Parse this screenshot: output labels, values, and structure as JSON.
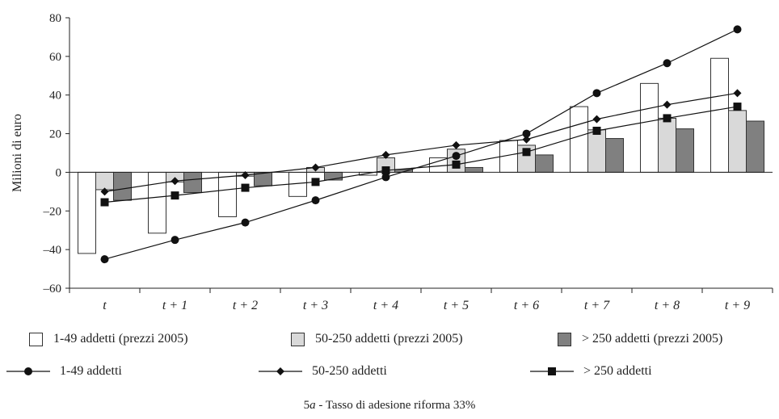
{
  "chart_data": {
    "type": "bar",
    "categories": [
      "t",
      "t + 1",
      "t + 2",
      "t + 3",
      "t + 4",
      "t + 5",
      "t + 6",
      "t + 7",
      "t + 8",
      "t + 9"
    ],
    "ylabel": "Milioni di euro",
    "xlabel": "",
    "ylim": [
      -60,
      80
    ],
    "yticks": [
      -60,
      -40,
      -20,
      0,
      20,
      40,
      60,
      80
    ],
    "bar_series": [
      {
        "name": "1-49 addetti (prezzi 2005)",
        "color": "#ffffff",
        "values": [
          -42,
          -31.5,
          -23,
          -12.5,
          -1.5,
          7.5,
          16.5,
          34,
          46,
          59
        ]
      },
      {
        "name": "50-250 addetti (prezzi 2005)",
        "color": "#d9d9d9",
        "values": [
          -9,
          -5,
          -2,
          2.5,
          7.5,
          12,
          14,
          22,
          28,
          32
        ]
      },
      {
        "name": "> 250 addetti (prezzi 2005)",
        "color": "#808080",
        "values": [
          -14.5,
          -10.5,
          -7,
          -4,
          1.5,
          2.5,
          9,
          17.5,
          22.5,
          26.5
        ]
      }
    ],
    "line_series": [
      {
        "name": "1-49 addetti",
        "marker": "circle",
        "values": [
          -45,
          -35,
          -26,
          -14.5,
          -2.5,
          8.5,
          20,
          41,
          56.5,
          74
        ]
      },
      {
        "name": "50-250 addetti",
        "marker": "diamond",
        "values": [
          -10,
          -4.5,
          -1.5,
          2.5,
          9,
          14,
          17,
          27.5,
          35,
          41
        ]
      },
      {
        "name": "> 250 addetti",
        "marker": "square",
        "values": [
          -15.5,
          -12,
          -8,
          -5,
          1,
          4,
          10.5,
          21.5,
          28,
          34
        ]
      }
    ]
  },
  "caption": {
    "prefix": "5",
    "italic": "a",
    "rest": " - Tasso di adesione riforma 33%"
  }
}
